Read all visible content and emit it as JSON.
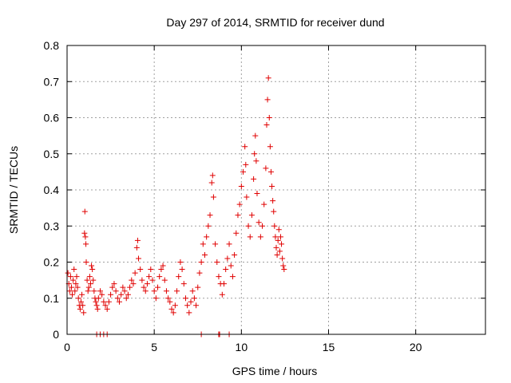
{
  "chart_data": {
    "type": "scatter",
    "title": "Day 297 of 2014, SRMTID for receiver dund",
    "xlabel": "GPS time / hours",
    "ylabel": "SRMTID / TECUs",
    "xlim": [
      0,
      24
    ],
    "ylim": [
      0,
      0.8
    ],
    "xticks": [
      0,
      5,
      10,
      15,
      20
    ],
    "xtick_labels": [
      "0",
      "5",
      "10",
      "15",
      "20"
    ],
    "yticks": [
      0,
      0.1,
      0.2,
      0.3,
      0.4,
      0.5,
      0.6,
      0.7,
      0.8
    ],
    "ytick_labels": [
      "0",
      "0.1",
      "0.2",
      "0.3",
      "0.4",
      "0.5",
      "0.6",
      "0.7",
      "0.8"
    ],
    "grid": true,
    "marker": "+",
    "colors": {
      "series": "#e00000",
      "grid": "#a0a0a0",
      "axis": "#000000"
    },
    "series": [
      {
        "name": "SRMTID",
        "points": [
          [
            0.05,
            0.17
          ],
          [
            0.1,
            0.14
          ],
          [
            0.15,
            0.12
          ],
          [
            0.2,
            0.16
          ],
          [
            0.25,
            0.13
          ],
          [
            0.3,
            0.11
          ],
          [
            0.35,
            0.15
          ],
          [
            0.4,
            0.18
          ],
          [
            0.45,
            0.12
          ],
          [
            0.5,
            0.14
          ],
          [
            0.55,
            0.16
          ],
          [
            0.6,
            0.13
          ],
          [
            0.65,
            0.1
          ],
          [
            0.7,
            0.08
          ],
          [
            0.75,
            0.07
          ],
          [
            0.8,
            0.09
          ],
          [
            0.85,
            0.11
          ],
          [
            0.9,
            0.08
          ],
          [
            0.95,
            0.06
          ],
          [
            1.0,
            0.28
          ],
          [
            1.02,
            0.34
          ],
          [
            1.05,
            0.27
          ],
          [
            1.08,
            0.25
          ],
          [
            1.1,
            0.2
          ],
          [
            1.15,
            0.15
          ],
          [
            1.2,
            0.12
          ],
          [
            1.25,
            0.13
          ],
          [
            1.3,
            0.16
          ],
          [
            1.35,
            0.14
          ],
          [
            1.4,
            0.19
          ],
          [
            1.45,
            0.18
          ],
          [
            1.5,
            0.15
          ],
          [
            1.55,
            0.12
          ],
          [
            1.6,
            0.1
          ],
          [
            1.65,
            0.09
          ],
          [
            1.7,
            0.08
          ],
          [
            1.75,
            0.07
          ],
          [
            1.8,
            0.1
          ],
          [
            1.9,
            0.12
          ],
          [
            2.0,
            0.11
          ],
          [
            2.1,
            0.09
          ],
          [
            2.2,
            0.08
          ],
          [
            2.3,
            0.07
          ],
          [
            2.4,
            0.09
          ],
          [
            2.5,
            0.11
          ],
          [
            2.6,
            0.13
          ],
          [
            2.7,
            0.14
          ],
          [
            2.8,
            0.12
          ],
          [
            2.9,
            0.1
          ],
          [
            3.0,
            0.09
          ],
          [
            3.1,
            0.11
          ],
          [
            3.2,
            0.13
          ],
          [
            3.3,
            0.12
          ],
          [
            3.4,
            0.1
          ],
          [
            3.5,
            0.11
          ],
          [
            3.6,
            0.13
          ],
          [
            3.7,
            0.15
          ],
          [
            3.8,
            0.14
          ],
          [
            3.9,
            0.17
          ],
          [
            4.0,
            0.24
          ],
          [
            4.05,
            0.26
          ],
          [
            4.1,
            0.21
          ],
          [
            4.2,
            0.18
          ],
          [
            4.3,
            0.15
          ],
          [
            4.4,
            0.13
          ],
          [
            4.5,
            0.12
          ],
          [
            4.6,
            0.14
          ],
          [
            4.7,
            0.16
          ],
          [
            4.8,
            0.18
          ],
          [
            4.9,
            0.15
          ],
          [
            5.0,
            0.12
          ],
          [
            5.1,
            0.1
          ],
          [
            5.2,
            0.13
          ],
          [
            5.3,
            0.16
          ],
          [
            5.4,
            0.18
          ],
          [
            5.5,
            0.19
          ],
          [
            5.6,
            0.15
          ],
          [
            5.7,
            0.12
          ],
          [
            5.8,
            0.1
          ],
          [
            5.9,
            0.09
          ],
          [
            6.0,
            0.07
          ],
          [
            6.1,
            0.06
          ],
          [
            6.2,
            0.08
          ],
          [
            6.3,
            0.12
          ],
          [
            6.4,
            0.16
          ],
          [
            6.5,
            0.2
          ],
          [
            6.6,
            0.18
          ],
          [
            6.7,
            0.14
          ],
          [
            6.8,
            0.1
          ],
          [
            6.9,
            0.08
          ],
          [
            7.0,
            0.06
          ],
          [
            7.1,
            0.09
          ],
          [
            7.2,
            0.12
          ],
          [
            7.3,
            0.1
          ],
          [
            7.4,
            0.08
          ],
          [
            7.5,
            0.13
          ],
          [
            7.6,
            0.17
          ],
          [
            7.7,
            0.2
          ],
          [
            7.8,
            0.25
          ],
          [
            7.9,
            0.22
          ],
          [
            8.0,
            0.27
          ],
          [
            8.1,
            0.3
          ],
          [
            8.2,
            0.33
          ],
          [
            8.3,
            0.42
          ],
          [
            8.35,
            0.44
          ],
          [
            8.4,
            0.38
          ],
          [
            8.5,
            0.25
          ],
          [
            8.6,
            0.2
          ],
          [
            8.7,
            0.16
          ],
          [
            8.8,
            0.14
          ],
          [
            8.9,
            0.11
          ],
          [
            9.0,
            0.14
          ],
          [
            9.1,
            0.18
          ],
          [
            9.2,
            0.21
          ],
          [
            9.3,
            0.25
          ],
          [
            9.4,
            0.19
          ],
          [
            9.5,
            0.16
          ],
          [
            9.6,
            0.22
          ],
          [
            9.7,
            0.28
          ],
          [
            9.8,
            0.33
          ],
          [
            9.9,
            0.36
          ],
          [
            10.0,
            0.41
          ],
          [
            10.1,
            0.45
          ],
          [
            10.2,
            0.52
          ],
          [
            10.25,
            0.47
          ],
          [
            10.3,
            0.38
          ],
          [
            10.4,
            0.3
          ],
          [
            10.5,
            0.27
          ],
          [
            10.6,
            0.33
          ],
          [
            10.7,
            0.43
          ],
          [
            10.75,
            0.5
          ],
          [
            10.8,
            0.55
          ],
          [
            10.85,
            0.48
          ],
          [
            10.9,
            0.39
          ],
          [
            11.0,
            0.31
          ],
          [
            11.1,
            0.27
          ],
          [
            11.2,
            0.3
          ],
          [
            11.3,
            0.36
          ],
          [
            11.4,
            0.46
          ],
          [
            11.45,
            0.58
          ],
          [
            11.5,
            0.65
          ],
          [
            11.55,
            0.71
          ],
          [
            11.6,
            0.6
          ],
          [
            11.65,
            0.52
          ],
          [
            11.7,
            0.45
          ],
          [
            11.75,
            0.41
          ],
          [
            11.8,
            0.37
          ],
          [
            11.85,
            0.34
          ],
          [
            11.9,
            0.3
          ],
          [
            11.95,
            0.27
          ],
          [
            12.0,
            0.24
          ],
          [
            12.05,
            0.22
          ],
          [
            12.1,
            0.26
          ],
          [
            12.15,
            0.29
          ],
          [
            12.2,
            0.23
          ],
          [
            12.25,
            0.27
          ],
          [
            12.3,
            0.25
          ],
          [
            12.35,
            0.21
          ],
          [
            12.4,
            0.19
          ],
          [
            12.45,
            0.18
          ]
        ],
        "zero_points": [
          1.7,
          1.9,
          2.1,
          2.3,
          7.7,
          8.7,
          8.75,
          9.3
        ]
      }
    ]
  }
}
